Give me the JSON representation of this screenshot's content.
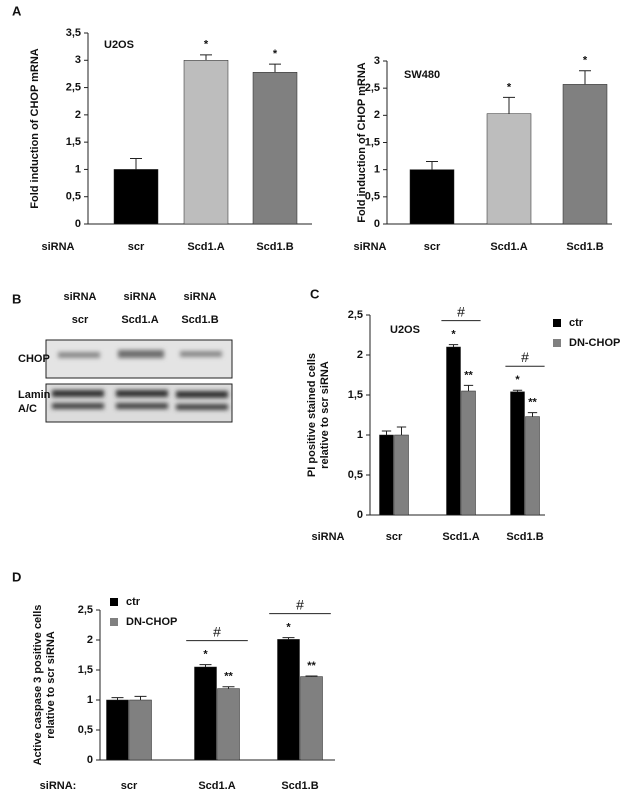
{
  "panels": [
    "A",
    "B",
    "C",
    "D"
  ],
  "blot": {
    "lanes": [
      [
        "siRNA",
        "scr"
      ],
      [
        "siRNA",
        "Scd1.A"
      ],
      [
        "siRNA",
        "Scd1.B"
      ]
    ],
    "rows": [
      [
        "CHOP"
      ],
      [
        "Lamin",
        "A/C"
      ]
    ]
  },
  "chart_data": [
    {
      "type": "bar",
      "title": "U2OS",
      "ylabel": [
        "Fold induction of CHOP mRNA"
      ],
      "row_label": "siRNA",
      "categories": [
        "scr",
        "Scd1.A",
        "Scd1.B"
      ],
      "values": [
        1.0,
        3.0,
        2.78
      ],
      "errors": [
        0.2,
        0.1,
        0.15
      ],
      "colors": [
        "#000000",
        "#bdbdbd",
        "#808080"
      ],
      "marks": [
        null,
        "*",
        "*"
      ],
      "ylim": [
        0,
        3.5
      ],
      "yticks": [
        0,
        {
          "value": 0.5,
          "label": "0,5"
        },
        1,
        {
          "value": 1.5,
          "label": "1,5"
        },
        2,
        {
          "value": 2.5,
          "label": "2,5"
        },
        3,
        {
          "value": 3.5,
          "label": "3,5"
        }
      ]
    },
    {
      "type": "bar",
      "title": "SW480",
      "ylabel": [
        "Fold induction of CHOP mRNA"
      ],
      "row_label": "siRNA",
      "categories": [
        "scr",
        "Scd1.A",
        "Scd1.B"
      ],
      "values": [
        1.0,
        2.03,
        2.57
      ],
      "errors": [
        0.15,
        0.3,
        0.25
      ],
      "colors": [
        "#000000",
        "#bdbdbd",
        "#808080"
      ],
      "marks": [
        null,
        "*",
        "*"
      ],
      "ylim": [
        0,
        3
      ],
      "yticks": [
        0,
        {
          "value": 0.5,
          "label": "0,5"
        },
        1,
        {
          "value": 1.5,
          "label": "1,5"
        },
        2,
        {
          "value": 2.5,
          "label": "2,5"
        },
        3
      ]
    },
    {
      "type": "bar",
      "title": "U2OS",
      "ylabel": [
        "PI positive stained cells",
        "relative to scr siRNA"
      ],
      "row_label": "siRNA",
      "categories": [
        "scr",
        "Scd1.A",
        "Scd1.B"
      ],
      "series": [
        {
          "name": "ctr",
          "color": "#000000",
          "values": [
            1.0,
            2.1,
            1.54
          ],
          "errors": [
            0.05,
            0.03,
            0.02
          ],
          "marks": [
            null,
            "*",
            "*"
          ]
        },
        {
          "name": "DN-CHOP",
          "color": "#808080",
          "values": [
            1.0,
            1.55,
            1.23
          ],
          "errors": [
            0.1,
            0.07,
            0.05
          ],
          "marks": [
            null,
            "**",
            "**"
          ]
        }
      ],
      "group_marks": [
        null,
        "#",
        "#"
      ],
      "ylim": [
        0,
        2.5
      ],
      "yticks": [
        0,
        {
          "value": 0.5,
          "label": "0,5"
        },
        1,
        {
          "value": 1.5,
          "label": "1,5"
        },
        2,
        {
          "value": 2.5,
          "label": "2,5"
        }
      ]
    },
    {
      "type": "bar",
      "ylabel": [
        "Active caspase 3 positive cells",
        "relative to scr siRNA"
      ],
      "row_label": "siRNA:",
      "categories": [
        "scr",
        "Scd1.A",
        "Scd1.B"
      ],
      "series": [
        {
          "name": "ctr",
          "color": "#000000",
          "values": [
            1.0,
            1.55,
            2.01
          ],
          "errors": [
            0.04,
            0.04,
            0.03
          ],
          "marks": [
            null,
            "*",
            "*"
          ]
        },
        {
          "name": "DN-CHOP",
          "color": "#808080",
          "values": [
            1.0,
            1.19,
            1.39
          ],
          "errors": [
            0.06,
            0.03,
            0.01
          ],
          "marks": [
            null,
            "**",
            "**"
          ]
        }
      ],
      "group_marks": [
        null,
        "#",
        "#"
      ],
      "ylim": [
        0,
        2.5
      ],
      "yticks": [
        0,
        {
          "value": 0.5,
          "label": "0,5"
        },
        1,
        {
          "value": 1.5,
          "label": "1,5"
        },
        2,
        {
          "value": 2.5,
          "label": "2,5"
        }
      ]
    }
  ]
}
